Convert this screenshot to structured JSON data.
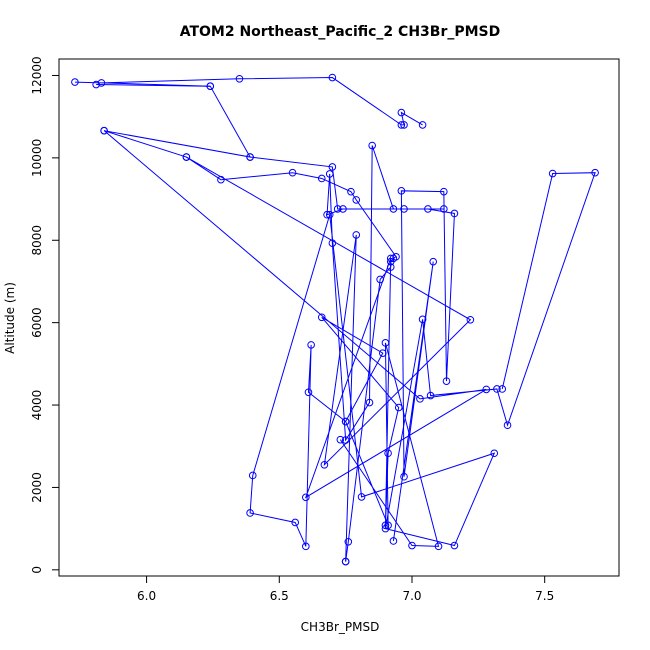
{
  "chart_data": {
    "type": "line",
    "title": "ATOM2 Northeast_Pacific_2 CH3Br_PMSD",
    "xlabel": "CH3Br_PMSD",
    "ylabel": "Altitude (m)",
    "xlim": [
      5.67,
      7.78
    ],
    "ylim": [
      -150,
      12400
    ],
    "x_ticks": [
      6.0,
      6.5,
      7.0,
      7.5
    ],
    "x_tick_labels": [
      "6.0",
      "6.5",
      "7.0",
      "7.5"
    ],
    "y_ticks": [
      0,
      2000,
      4000,
      6000,
      8000,
      10000,
      12000
    ],
    "y_tick_labels": [
      "0",
      "2000",
      "4000",
      "6000",
      "8000",
      "10000",
      "12000"
    ],
    "grid": false,
    "series": [
      {
        "color": "#0000ff",
        "points": [
          {
            "x": 6.75,
            "y": 200
          },
          {
            "x": 6.76,
            "y": 680
          },
          {
            "x": 6.88,
            "y": 7050
          },
          {
            "x": 6.92,
            "y": 7350
          },
          {
            "x": 6.92,
            "y": 7480
          },
          {
            "x": 6.93,
            "y": 7560
          },
          {
            "x": 6.94,
            "y": 7600
          },
          {
            "x": 6.79,
            "y": 8980
          },
          {
            "x": 6.77,
            "y": 9180
          },
          {
            "x": 6.66,
            "y": 9500
          },
          {
            "x": 6.55,
            "y": 9640
          },
          {
            "x": 6.28,
            "y": 9470
          },
          {
            "x": 6.15,
            "y": 10020
          },
          {
            "x": 5.84,
            "y": 10660
          },
          {
            "x": 6.39,
            "y": 10020
          },
          {
            "x": 6.24,
            "y": 11740
          },
          {
            "x": 5.73,
            "y": 11840
          },
          {
            "x": 5.83,
            "y": 11820
          },
          {
            "x": 6.35,
            "y": 11920
          },
          {
            "x": 6.7,
            "y": 11950
          },
          {
            "x": 6.96,
            "y": 10800
          },
          {
            "x": 6.97,
            "y": 10800
          },
          {
            "x": 6.96,
            "y": 11100
          },
          {
            "x": 7.04,
            "y": 10800
          }
        ]
      },
      {
        "color": "#0000ff",
        "points": [
          {
            "x": 5.81,
            "y": 11780
          },
          {
            "x": 6.24,
            "y": 11740
          }
        ]
      },
      {
        "color": "#0000ff",
        "points": [
          {
            "x": 6.39,
            "y": 10020
          },
          {
            "x": 6.7,
            "y": 9780
          },
          {
            "x": 6.72,
            "y": 8760
          },
          {
            "x": 7.12,
            "y": 8760
          },
          {
            "x": 6.74,
            "y": 8760
          },
          {
            "x": 6.68,
            "y": 8620
          },
          {
            "x": 6.69,
            "y": 9610
          },
          {
            "x": 6.7,
            "y": 7930
          },
          {
            "x": 6.75,
            "y": 3150
          },
          {
            "x": 6.84,
            "y": 4060
          },
          {
            "x": 6.85,
            "y": 10300
          },
          {
            "x": 6.93,
            "y": 8760
          },
          {
            "x": 6.97,
            "y": 8760
          },
          {
            "x": 7.06,
            "y": 8760
          },
          {
            "x": 7.16,
            "y": 8650
          },
          {
            "x": 7.13,
            "y": 4580
          },
          {
            "x": 7.12,
            "y": 9180
          },
          {
            "x": 6.96,
            "y": 9200
          },
          {
            "x": 6.97,
            "y": 2260
          },
          {
            "x": 7.08,
            "y": 7480
          },
          {
            "x": 6.93,
            "y": 700
          }
        ]
      },
      {
        "color": "#0000ff",
        "points": [
          {
            "x": 5.84,
            "y": 10660
          },
          {
            "x": 7.03,
            "y": 4150
          },
          {
            "x": 7.28,
            "y": 4380
          },
          {
            "x": 6.6,
            "y": 1760
          },
          {
            "x": 6.92,
            "y": 7560
          },
          {
            "x": 6.9,
            "y": 1080
          },
          {
            "x": 6.91,
            "y": 2830
          },
          {
            "x": 6.95,
            "y": 3940
          },
          {
            "x": 6.66,
            "y": 6130
          },
          {
            "x": 6.89,
            "y": 5260
          },
          {
            "x": 6.75,
            "y": 3600
          },
          {
            "x": 6.61,
            "y": 4310
          },
          {
            "x": 6.62,
            "y": 5460
          },
          {
            "x": 6.6,
            "y": 570
          },
          {
            "x": 6.56,
            "y": 1150
          },
          {
            "x": 6.39,
            "y": 1380
          },
          {
            "x": 6.4,
            "y": 2290
          },
          {
            "x": 6.69,
            "y": 8620
          },
          {
            "x": 6.81,
            "y": 1770
          },
          {
            "x": 7.31,
            "y": 2830
          },
          {
            "x": 7.16,
            "y": 590
          },
          {
            "x": 6.9,
            "y": 1000
          },
          {
            "x": 7.04,
            "y": 6080
          },
          {
            "x": 7.07,
            "y": 4230
          },
          {
            "x": 7.32,
            "y": 4390
          },
          {
            "x": 7.36,
            "y": 3510
          },
          {
            "x": 7.69,
            "y": 9640
          },
          {
            "x": 7.53,
            "y": 9620
          },
          {
            "x": 7.34,
            "y": 4390
          }
        ]
      },
      {
        "color": "#0000ff",
        "points": [
          {
            "x": 6.75,
            "y": 200
          },
          {
            "x": 6.79,
            "y": 8130
          },
          {
            "x": 6.67,
            "y": 2550
          },
          {
            "x": 7.22,
            "y": 6070
          },
          {
            "x": 6.15,
            "y": 10020
          }
        ]
      },
      {
        "color": "#0000ff",
        "points": [
          {
            "x": 6.73,
            "y": 3160
          },
          {
            "x": 7.0,
            "y": 590
          },
          {
            "x": 7.1,
            "y": 570
          },
          {
            "x": 6.9,
            "y": 5510
          },
          {
            "x": 6.91,
            "y": 1080
          },
          {
            "x": 6.75,
            "y": 3600
          }
        ]
      }
    ]
  }
}
